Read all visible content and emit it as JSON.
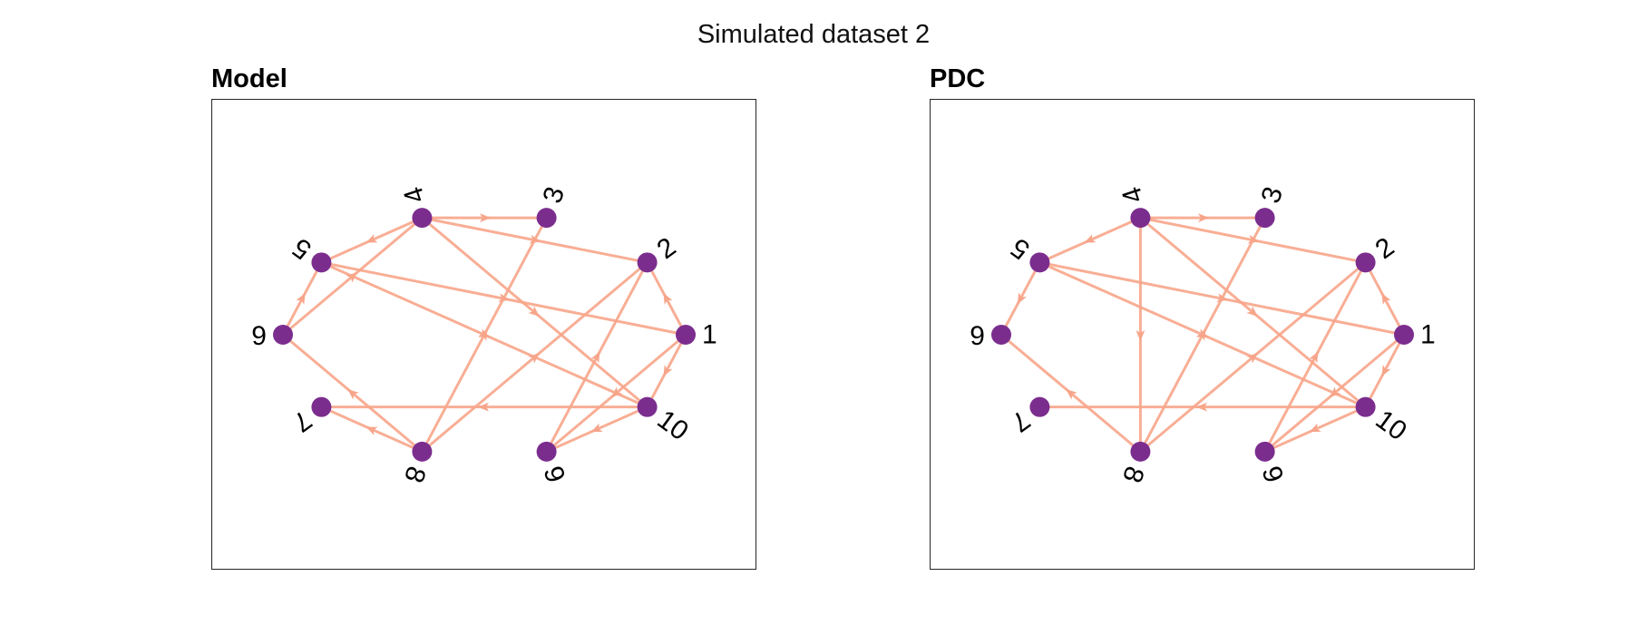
{
  "figure": {
    "title": "Simulated dataset 2",
    "colors": {
      "node": "#7b2d8e",
      "edge": "#f7a58a",
      "frame": "#262626",
      "background": "#ffffff"
    }
  },
  "panels": [
    {
      "title": "Model",
      "nodes": [
        "1",
        "2",
        "3",
        "4",
        "5",
        "6",
        "7",
        "8",
        "9",
        "10"
      ],
      "edges": [
        {
          "from": "4",
          "to": "3"
        },
        {
          "from": "4",
          "to": "2"
        },
        {
          "from": "4",
          "to": "5"
        },
        {
          "from": "4",
          "to": "10"
        },
        {
          "from": "6",
          "to": "4"
        },
        {
          "from": "6",
          "to": "5"
        },
        {
          "from": "5",
          "to": "1"
        },
        {
          "from": "5",
          "to": "10"
        },
        {
          "from": "8",
          "to": "3"
        },
        {
          "from": "8",
          "to": "2"
        },
        {
          "from": "8",
          "to": "6"
        },
        {
          "from": "8",
          "to": "7"
        },
        {
          "from": "10",
          "to": "7"
        },
        {
          "from": "1",
          "to": "2"
        },
        {
          "from": "1",
          "to": "10"
        },
        {
          "from": "1",
          "to": "9"
        },
        {
          "from": "10",
          "to": "9"
        },
        {
          "from": "9",
          "to": "2"
        }
      ]
    },
    {
      "title": "PDC",
      "nodes": [
        "1",
        "2",
        "3",
        "4",
        "5",
        "6",
        "7",
        "8",
        "9",
        "10"
      ],
      "edges": [
        {
          "from": "4",
          "to": "3"
        },
        {
          "from": "4",
          "to": "2"
        },
        {
          "from": "4",
          "to": "5"
        },
        {
          "from": "4",
          "to": "10"
        },
        {
          "from": "4",
          "to": "8"
        },
        {
          "from": "5",
          "to": "1"
        },
        {
          "from": "5",
          "to": "10"
        },
        {
          "from": "5",
          "to": "6"
        },
        {
          "from": "8",
          "to": "3"
        },
        {
          "from": "8",
          "to": "2"
        },
        {
          "from": "8",
          "to": "6"
        },
        {
          "from": "10",
          "to": "7"
        },
        {
          "from": "1",
          "to": "2"
        },
        {
          "from": "1",
          "to": "10"
        },
        {
          "from": "1",
          "to": "9"
        },
        {
          "from": "10",
          "to": "9"
        },
        {
          "from": "9",
          "to": "2"
        }
      ]
    }
  ]
}
